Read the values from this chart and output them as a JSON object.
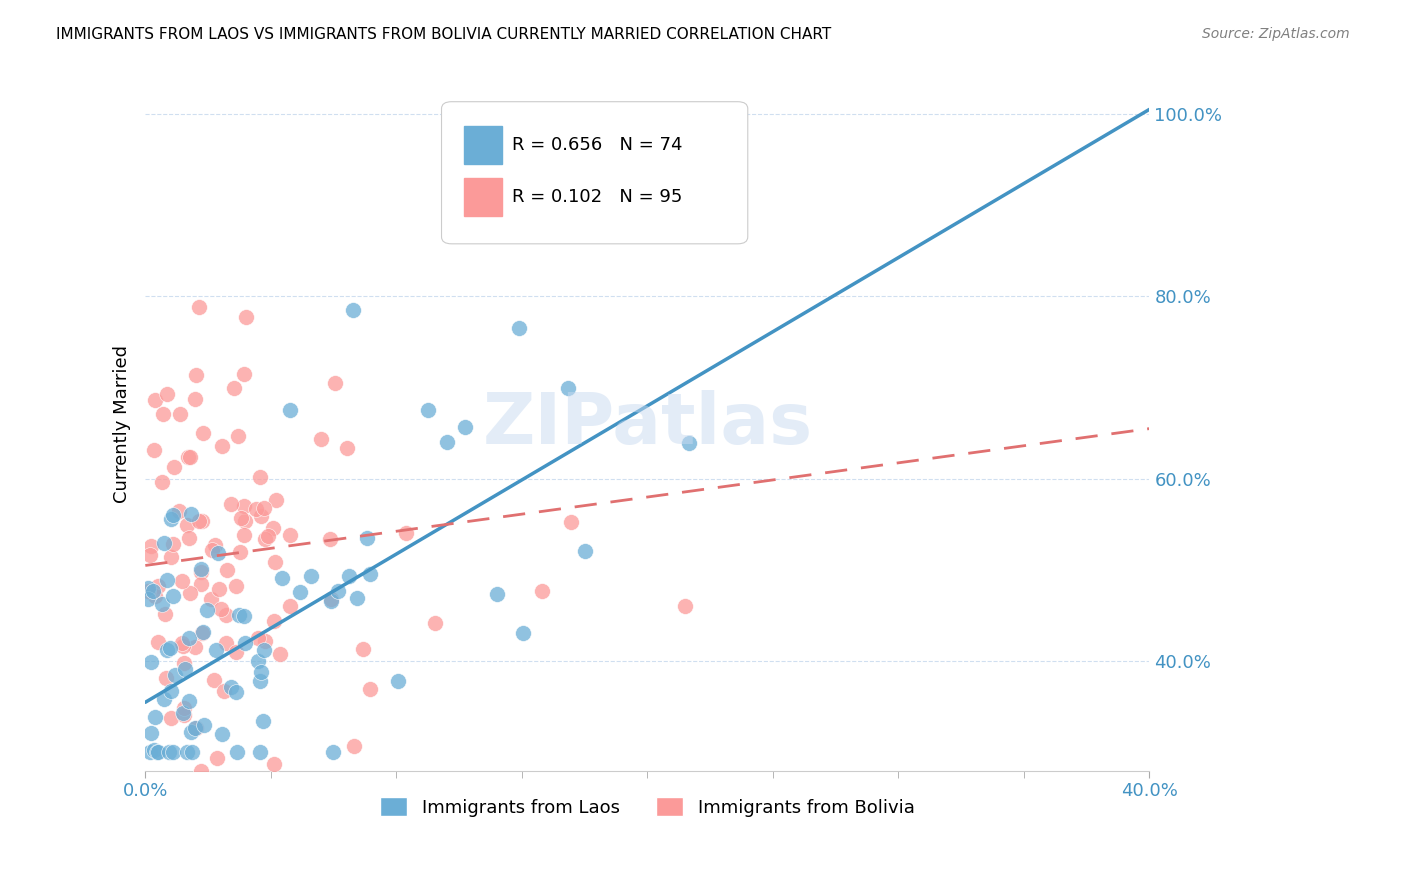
{
  "title": "IMMIGRANTS FROM LAOS VS IMMIGRANTS FROM BOLIVIA CURRENTLY MARRIED CORRELATION CHART",
  "source": "Source: ZipAtlas.com",
  "ylabel": "Currently Married",
  "xlim": [
    0.0,
    0.4
  ],
  "ylim": [
    0.28,
    1.04
  ],
  "laos_R": 0.656,
  "laos_N": 74,
  "bolivia_R": 0.102,
  "bolivia_N": 95,
  "laos_color": "#6baed6",
  "bolivia_color": "#fb9a99",
  "laos_line_color": "#4393c3",
  "bolivia_line_color": "#e07070",
  "watermark": "ZIPatlas",
  "legend_label_laos": "Immigrants from Laos",
  "legend_label_bolivia": "Immigrants from Bolivia",
  "laos_line_y0": 0.355,
  "laos_line_y1": 1.005,
  "bolivia_line_y0": 0.505,
  "bolivia_line_y1": 0.655
}
